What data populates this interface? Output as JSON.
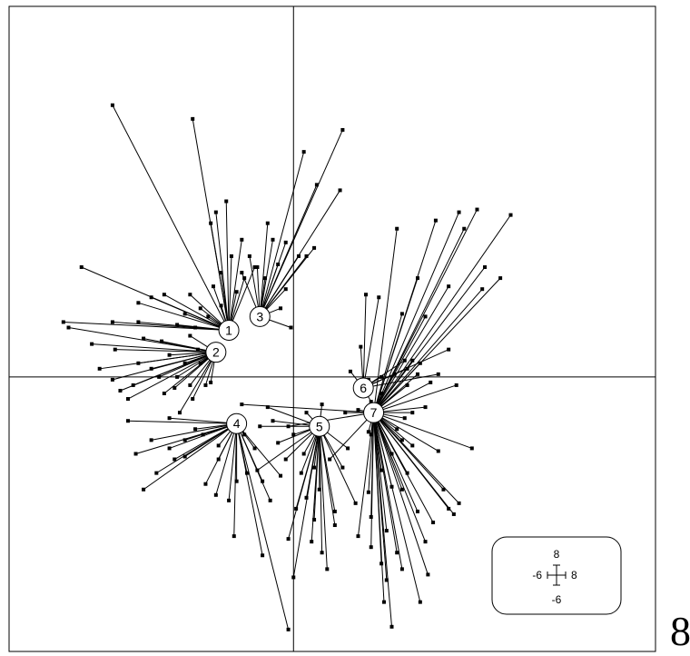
{
  "chart_data": {
    "type": "scatter",
    "title": "",
    "xlabel": "",
    "ylabel": "",
    "xlim": [
      -11,
      14
    ],
    "ylim": [
      -10,
      13.5
    ],
    "axes_cross_at": [
      0,
      0
    ],
    "grid": false,
    "legend": "none",
    "style": {
      "point_color": "#000000",
      "line_color": "#000000",
      "centroid_fill": "#ffffff"
    },
    "centroids": [
      {
        "label": "1",
        "x": -2.5,
        "y": 1.7
      },
      {
        "label": "2",
        "x": -3.0,
        "y": 0.9
      },
      {
        "label": "3",
        "x": -1.3,
        "y": 2.2
      },
      {
        "label": "4",
        "x": -2.2,
        "y": -1.7
      },
      {
        "label": "5",
        "x": 1.0,
        "y": -1.8
      },
      {
        "label": "6",
        "x": 2.7,
        "y": -0.4
      },
      {
        "label": "7",
        "x": 3.1,
        "y": -1.3
      }
    ],
    "points_by_group": {
      "1": [
        [
          -7.0,
          9.9
        ],
        [
          -3.9,
          9.4
        ],
        [
          -3.0,
          6.0
        ],
        [
          -2.6,
          6.4
        ],
        [
          -2.0,
          5.0
        ],
        [
          -2.4,
          4.4
        ],
        [
          -4.0,
          3.0
        ],
        [
          -5.0,
          3.0
        ],
        [
          -5.5,
          2.9
        ],
        [
          -6.0,
          2.7
        ],
        [
          -8.2,
          4.0
        ],
        [
          -8.9,
          2.0
        ],
        [
          -7.0,
          2.0
        ],
        [
          -6.0,
          2.0
        ],
        [
          -3.3,
          2.2
        ],
        [
          -3.6,
          2.5
        ],
        [
          -4.2,
          2.3
        ],
        [
          -3.8,
          1.8
        ],
        [
          -2.8,
          3.8
        ],
        [
          -2.2,
          3.1
        ],
        [
          -1.9,
          3.6
        ],
        [
          -3.1,
          3.3
        ],
        [
          -4.5,
          1.9
        ],
        [
          -3.2,
          5.6
        ],
        [
          -1.5,
          4.0
        ],
        [
          -2.8,
          2.6
        ]
      ],
      "2": [
        [
          -6.9,
          1.0
        ],
        [
          -7.5,
          0.3
        ],
        [
          -6.7,
          -0.5
        ],
        [
          -6.0,
          0.5
        ],
        [
          -5.5,
          0.3
        ],
        [
          -7.0,
          -0.1
        ],
        [
          -5.0,
          -0.6
        ],
        [
          -4.5,
          0.0
        ],
        [
          -6.2,
          -0.3
        ],
        [
          -5.1,
          1.3
        ],
        [
          -4.0,
          1.5
        ],
        [
          -4.6,
          -0.4
        ],
        [
          -3.7,
          1.0
        ],
        [
          -3.9,
          -0.8
        ],
        [
          -4.4,
          -1.3
        ],
        [
          -3.4,
          -0.3
        ],
        [
          -8.7,
          1.8
        ],
        [
          -7.8,
          1.2
        ],
        [
          -5.8,
          1.4
        ],
        [
          -4.0,
          -0.3
        ],
        [
          -3.6,
          0.5
        ],
        [
          -4.2,
          0.5
        ],
        [
          -5.2,
          0.0
        ],
        [
          -4.8,
          0.8
        ],
        [
          -6.4,
          -0.8
        ],
        [
          -3.2,
          -0.2
        ]
      ],
      "3": [
        [
          0.4,
          8.2
        ],
        [
          1.8,
          6.8
        ],
        [
          -0.8,
          5.0
        ],
        [
          -0.3,
          4.9
        ],
        [
          0.2,
          4.4
        ],
        [
          0.8,
          4.7
        ],
        [
          -1.0,
          5.6
        ],
        [
          0.5,
          4.4
        ],
        [
          -0.6,
          4.1
        ],
        [
          -1.1,
          3.6
        ],
        [
          -1.4,
          4.0
        ],
        [
          -0.3,
          3.2
        ],
        [
          -0.5,
          2.5
        ],
        [
          -0.1,
          1.8
        ],
        [
          -2.0,
          3.8
        ],
        [
          -1.7,
          4.4
        ],
        [
          1.9,
          9.0
        ],
        [
          0.9,
          7.0
        ]
      ],
      "4": [
        [
          -5.8,
          -4.1
        ],
        [
          -4.6,
          -3.0
        ],
        [
          -6.4,
          -1.6
        ],
        [
          -6.1,
          -2.8
        ],
        [
          -5.3,
          -3.5
        ],
        [
          -4.2,
          -2.9
        ],
        [
          -4.8,
          -1.5
        ],
        [
          -4.8,
          -2.6
        ],
        [
          -4.2,
          -2.3
        ],
        [
          -3.4,
          -3.9
        ],
        [
          -2.9,
          -3.0
        ],
        [
          -2.2,
          -3.8
        ],
        [
          -1.8,
          -3.5
        ],
        [
          -1.2,
          -3.8
        ],
        [
          -0.9,
          -4.5
        ],
        [
          -0.5,
          -3.6
        ],
        [
          -2.3,
          -5.8
        ],
        [
          -2.9,
          -2.5
        ],
        [
          -2.5,
          -4.5
        ],
        [
          -3.8,
          -1.9
        ],
        [
          -1.2,
          -6.5
        ],
        [
          -0.2,
          -9.2
        ],
        [
          -3.0,
          -4.3
        ],
        [
          -1.9,
          -2.1
        ],
        [
          -5.5,
          -2.3
        ],
        [
          -1.5,
          -2.6
        ],
        [
          -3.5,
          -2.1
        ]
      ],
      "5": [
        [
          -0.2,
          -5.9
        ],
        [
          0.0,
          -7.3
        ],
        [
          0.7,
          -6.0
        ],
        [
          0.1,
          -4.8
        ],
        [
          0.5,
          -4.4
        ],
        [
          0.3,
          -3.5
        ],
        [
          -0.3,
          -3.0
        ],
        [
          -0.6,
          -2.4
        ],
        [
          -0.8,
          -1.6
        ],
        [
          -1.3,
          -1.8
        ],
        [
          0.0,
          -2.1
        ],
        [
          0.4,
          -2.8
        ],
        [
          0.8,
          -3.3
        ],
        [
          1.0,
          -4.1
        ],
        [
          1.6,
          -4.9
        ],
        [
          1.6,
          -5.4
        ],
        [
          1.1,
          -6.4
        ],
        [
          1.3,
          -7.0
        ],
        [
          2.4,
          -4.6
        ],
        [
          1.9,
          -3.3
        ],
        [
          2.1,
          -2.6
        ],
        [
          1.1,
          -1.0
        ],
        [
          0.5,
          -1.3
        ],
        [
          -1.0,
          -1.1
        ],
        [
          0.8,
          -5.2
        ],
        [
          -1.4,
          -3.4
        ]
      ],
      "6": [
        [
          3.0,
          -0.9
        ],
        [
          2.9,
          -0.1
        ],
        [
          2.6,
          1.1
        ],
        [
          2.8,
          3.0
        ],
        [
          3.3,
          2.9
        ],
        [
          3.4,
          0.0
        ],
        [
          2.2,
          0.2
        ],
        [
          3.9,
          0.1
        ],
        [
          4.3,
          0.6
        ],
        [
          4.4,
          0.3
        ],
        [
          5.6,
          0.1
        ],
        [
          6.0,
          1.0
        ]
      ],
      "7": [
        [
          4.0,
          5.4
        ],
        [
          5.5,
          5.7
        ],
        [
          6.4,
          6.0
        ],
        [
          7.1,
          6.1
        ],
        [
          6.6,
          5.4
        ],
        [
          8.4,
          5.9
        ],
        [
          7.3,
          3.2
        ],
        [
          6.0,
          3.3
        ],
        [
          8.0,
          3.6
        ],
        [
          7.4,
          4.0
        ],
        [
          4.8,
          3.6
        ],
        [
          4.2,
          2.3
        ],
        [
          5.1,
          2.2
        ],
        [
          4.9,
          0.5
        ],
        [
          4.6,
          0.6
        ],
        [
          4.8,
          0.1
        ],
        [
          5.3,
          -0.2
        ],
        [
          4.4,
          -0.3
        ],
        [
          4.6,
          -1.3
        ],
        [
          4.3,
          -1.5
        ],
        [
          4.2,
          -2.3
        ],
        [
          4.4,
          -3.5
        ],
        [
          4.8,
          -4.9
        ],
        [
          5.4,
          -5.3
        ],
        [
          6.0,
          -4.8
        ],
        [
          6.4,
          -4.6
        ],
        [
          5.1,
          -6.0
        ],
        [
          4.2,
          -7.0
        ],
        [
          4.0,
          -6.4
        ],
        [
          3.6,
          -5.6
        ],
        [
          3.5,
          -8.2
        ],
        [
          4.9,
          -8.2
        ],
        [
          3.8,
          -4.0
        ],
        [
          3.4,
          -3.4
        ],
        [
          3.0,
          -5.1
        ],
        [
          2.9,
          -4.2
        ],
        [
          3.0,
          -6.2
        ],
        [
          2.5,
          -5.8
        ],
        [
          3.4,
          -6.8
        ],
        [
          3.8,
          -9.1
        ],
        [
          5.2,
          -7.2
        ],
        [
          3.6,
          -7.4
        ],
        [
          4.2,
          -4.1
        ],
        [
          6.3,
          -0.3
        ],
        [
          5.1,
          -1.1
        ],
        [
          6.9,
          -2.6
        ],
        [
          3.4,
          -0.6
        ],
        [
          3.0,
          -2.1
        ],
        [
          2.5,
          -1.2
        ],
        [
          4.0,
          -1.9
        ],
        [
          5.6,
          -2.7
        ],
        [
          3.2,
          -1.6
        ],
        [
          4.6,
          -2.5
        ],
        [
          6.2,
          -5.0
        ],
        [
          5.8,
          -4.1
        ],
        [
          3.8,
          -2.8
        ],
        [
          2.9,
          -2.0
        ],
        [
          1.4,
          -3.0
        ],
        [
          2.0,
          -1.3
        ],
        [
          -0.2,
          -1.8
        ],
        [
          -2.0,
          -1.0
        ]
      ]
    },
    "scale_box": {
      "top": "8",
      "left": "-6",
      "right": "8",
      "bottom": "-6"
    }
  },
  "page": {
    "corner_label": "8"
  }
}
